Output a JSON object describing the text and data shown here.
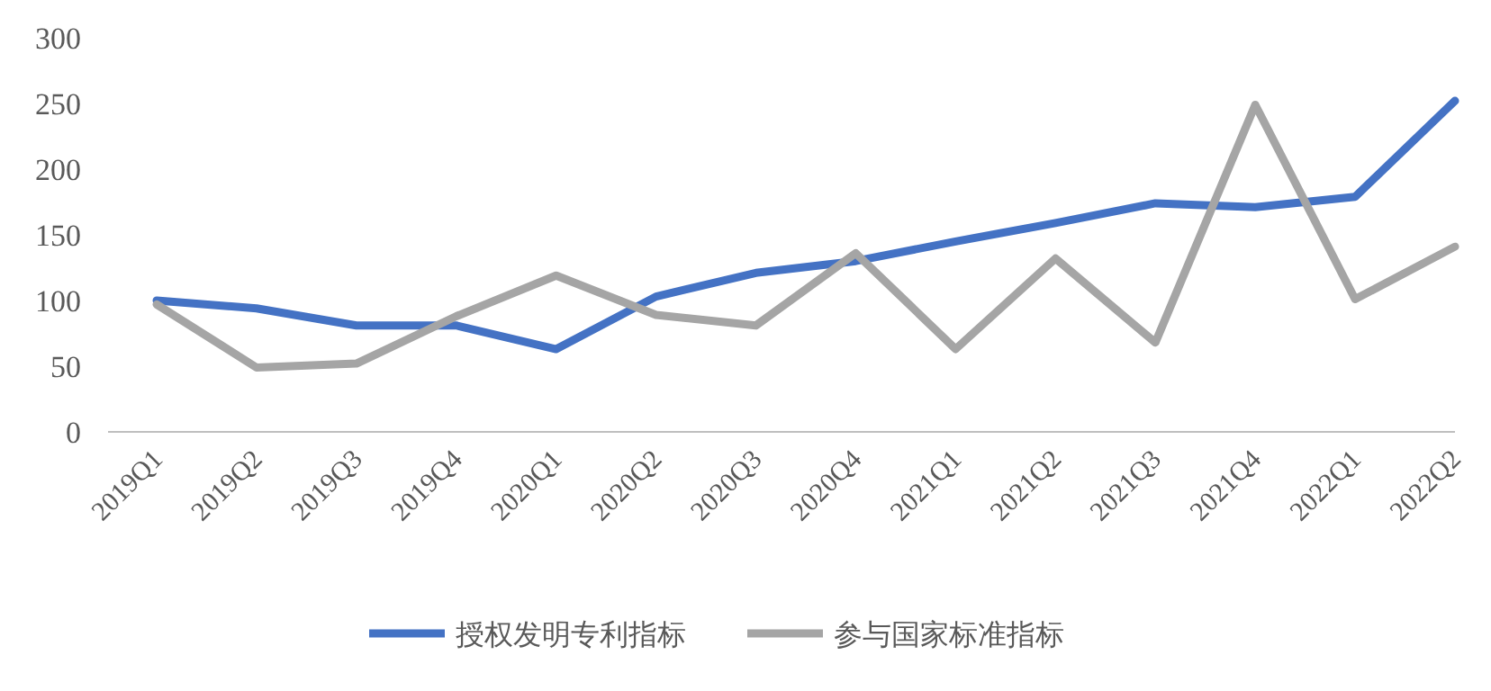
{
  "chart_data": {
    "type": "line",
    "categories": [
      "2019Q1",
      "2019Q2",
      "2019Q3",
      "2019Q4",
      "2020Q1",
      "2020Q2",
      "2020Q3",
      "2020Q4",
      "2021Q1",
      "2021Q2",
      "2021Q3",
      "2021Q4",
      "2022Q1",
      "2022Q2"
    ],
    "series": [
      {
        "name": "授权发明专利指标",
        "color": "#4472c4",
        "values": [
          100,
          94,
          81,
          81,
          63,
          103,
          121,
          130,
          145,
          159,
          174,
          171,
          179,
          252
        ]
      },
      {
        "name": "参与国家标准指标",
        "color": "#a5a5a5",
        "values": [
          97,
          49,
          52,
          88,
          119,
          89,
          81,
          136,
          63,
          132,
          68,
          249,
          101,
          141
        ]
      }
    ],
    "ylim": [
      0,
      300
    ],
    "yticks": [
      0,
      50,
      100,
      150,
      200,
      250,
      300
    ],
    "grid": false,
    "legend": "bottom",
    "marker": "none",
    "line_style": "solid"
  }
}
